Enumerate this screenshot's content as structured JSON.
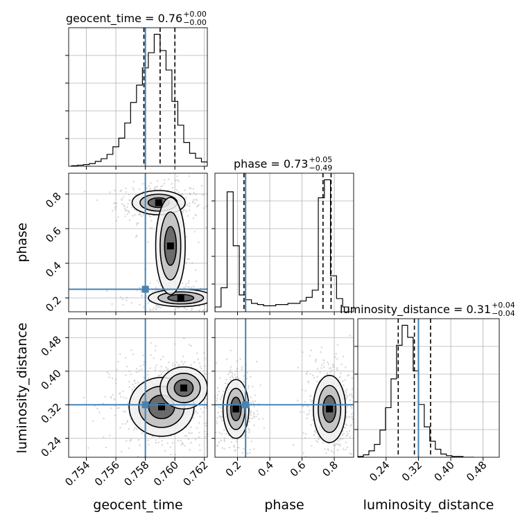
{
  "figure_type": "corner plot",
  "colors": {
    "truth": "#4682b4",
    "line": "#000000",
    "grid": "#b0b0b0",
    "points": "#8a8a8a"
  },
  "chart_data": [
    {
      "type": "histogram",
      "panel": "geocent_time",
      "title": {
        "prefix": "geocent_time = 0.76",
        "upper": "+0.00",
        "lower": "−0.00"
      },
      "xlim": [
        0.7528,
        0.7622
      ],
      "bin_width": 0.0004,
      "bin_start": 0.753,
      "values": [
        1,
        2,
        3,
        5,
        9,
        14,
        22,
        36,
        52,
        80,
        118,
        150,
        182,
        210,
        244,
        214,
        178,
        120,
        76,
        44,
        24,
        15,
        8
      ],
      "quantiles": [
        0.7579,
        0.759,
        0.76
      ],
      "truth": 0.758
    },
    {
      "type": "histogram",
      "panel": "phase",
      "title": {
        "prefix": "phase = 0.73",
        "upper": "+0.05",
        "lower": "−0.49"
      },
      "xlim": [
        0.06,
        0.92
      ],
      "bin_width": 0.0377,
      "bin_start": 0.06,
      "values": [
        8,
        40,
        200,
        110,
        28,
        20,
        14,
        12,
        10,
        10,
        12,
        12,
        14,
        14,
        18,
        24,
        36,
        190,
        220,
        60,
        22,
        8
      ],
      "quantiles": [
        0.24,
        0.73,
        0.78
      ],
      "truth": 0.25
    },
    {
      "type": "histogram",
      "panel": "luminosity_distance",
      "title": {
        "prefix": "luminosity_distance = 0.31",
        "upper": "+0.04",
        "lower": "−0.04"
      },
      "xlim": [
        0.17,
        0.52
      ],
      "bin_width": 0.0137,
      "bin_start": 0.17,
      "values": [
        1,
        3,
        8,
        16,
        34,
        62,
        98,
        140,
        165,
        150,
        108,
        66,
        38,
        20,
        10,
        4,
        2,
        1,
        1,
        0,
        0
      ],
      "quantiles": [
        0.27,
        0.31,
        0.35
      ],
      "truth": 0.32
    },
    {
      "type": "scatter-density",
      "x_param": "geocent_time",
      "y_param": "phase",
      "xlim": [
        0.7528,
        0.7622
      ],
      "ylim": [
        0.12,
        0.92
      ],
      "truth": [
        0.758,
        0.25
      ],
      "modes": [
        {
          "cx": 0.7589,
          "cy": 0.75,
          "sx": 0.0009,
          "sy": 0.035,
          "w": 0.4
        },
        {
          "cx": 0.7604,
          "cy": 0.2,
          "sx": 0.0011,
          "sy": 0.025,
          "w": 0.3
        },
        {
          "cx": 0.7597,
          "cy": 0.5,
          "sx": 0.0005,
          "sy": 0.14,
          "w": 0.15
        }
      ]
    },
    {
      "type": "scatter-density",
      "x_param": "geocent_time",
      "y_param": "luminosity_distance",
      "xlim": [
        0.7528,
        0.7622
      ],
      "ylim": [
        0.195,
        0.525
      ],
      "truth": [
        0.758,
        0.32
      ],
      "modes": [
        {
          "cx": 0.7591,
          "cy": 0.315,
          "sx": 0.0011,
          "sy": 0.035,
          "w": 0.6
        },
        {
          "cx": 0.7606,
          "cy": 0.36,
          "sx": 0.0008,
          "sy": 0.025,
          "w": 0.25
        }
      ]
    },
    {
      "type": "scatter-density",
      "x_param": "phase",
      "y_param": "luminosity_distance",
      "xlim": [
        0.06,
        0.92
      ],
      "ylim": [
        0.195,
        0.525
      ],
      "truth": [
        0.25,
        0.32
      ],
      "modes": [
        {
          "cx": 0.19,
          "cy": 0.31,
          "sx": 0.04,
          "sy": 0.035,
          "w": 0.4
        },
        {
          "cx": 0.77,
          "cy": 0.31,
          "sx": 0.05,
          "sy": 0.04,
          "w": 0.5
        }
      ]
    }
  ],
  "axes": {
    "geocent_time": {
      "label": "geocent_time",
      "ticks": [
        0.754,
        0.756,
        0.758,
        0.76,
        0.762
      ],
      "tick_labels": [
        "0.754",
        "0.756",
        "0.758",
        "0.760",
        "0.762"
      ]
    },
    "phase": {
      "label": "phase",
      "ticks": [
        0.2,
        0.4,
        0.6,
        0.8
      ],
      "tick_labels": [
        "0.2",
        "0.4",
        "0.6",
        "0.8"
      ]
    },
    "luminosity_distance": {
      "label": "luminosity_distance",
      "ticks": [
        0.24,
        0.32,
        0.4,
        0.48
      ],
      "tick_labels": [
        "0.24",
        "0.32",
        "0.40",
        "0.48"
      ]
    }
  }
}
